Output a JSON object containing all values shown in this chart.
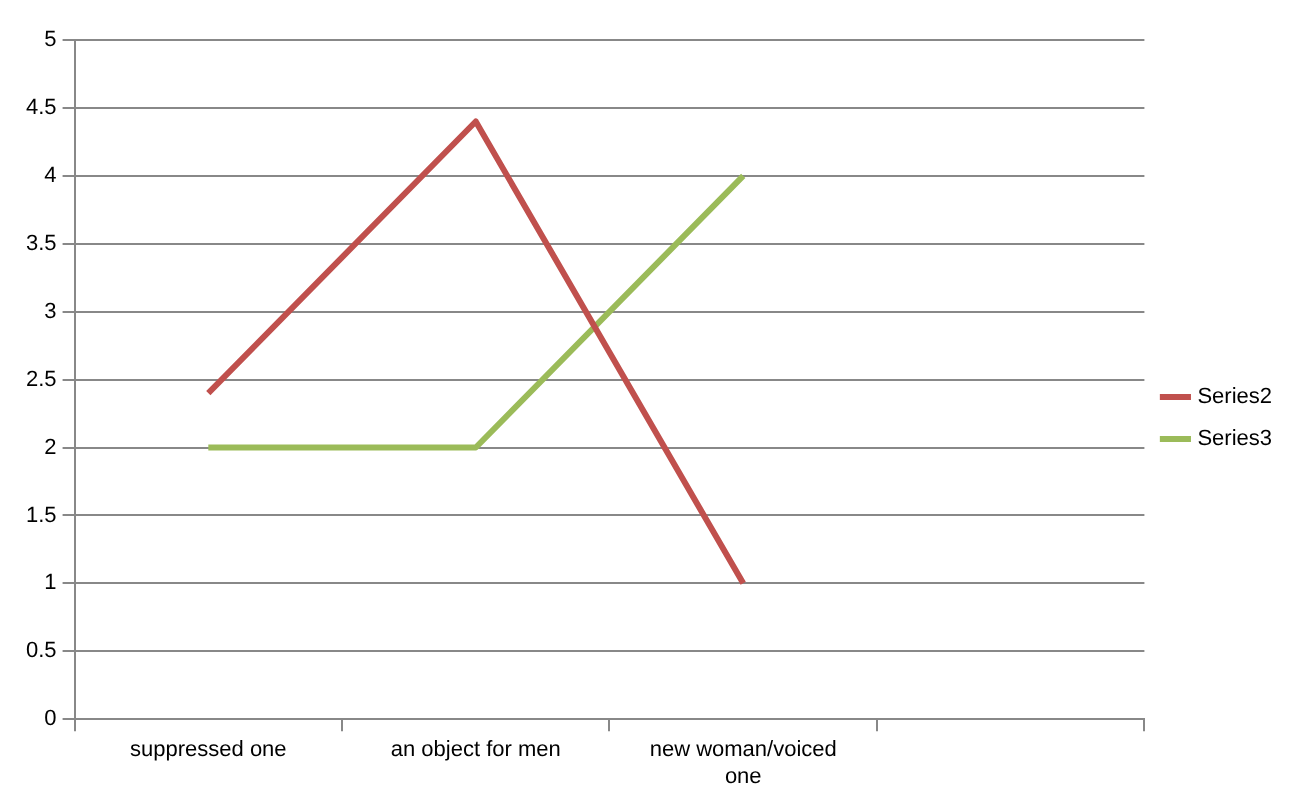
{
  "chart_data": {
    "type": "line",
    "categories": [
      "suppressed one",
      "an object for men",
      "new woman/voiced one",
      null
    ],
    "series": [
      {
        "name": "Series2",
        "color": "#c0504d",
        "values": [
          2.4,
          4.4,
          1.0,
          null
        ]
      },
      {
        "name": "Series3",
        "color": "#9bbb59",
        "values": [
          2,
          2,
          4,
          null
        ]
      }
    ],
    "ylim": [
      0,
      5
    ],
    "yticks": [
      0,
      0.5,
      1,
      1.5,
      2,
      2.5,
      3,
      3.5,
      4,
      4.5,
      5
    ],
    "grid": "y",
    "legend": "right",
    "marker": "none",
    "line_style": "solid"
  }
}
